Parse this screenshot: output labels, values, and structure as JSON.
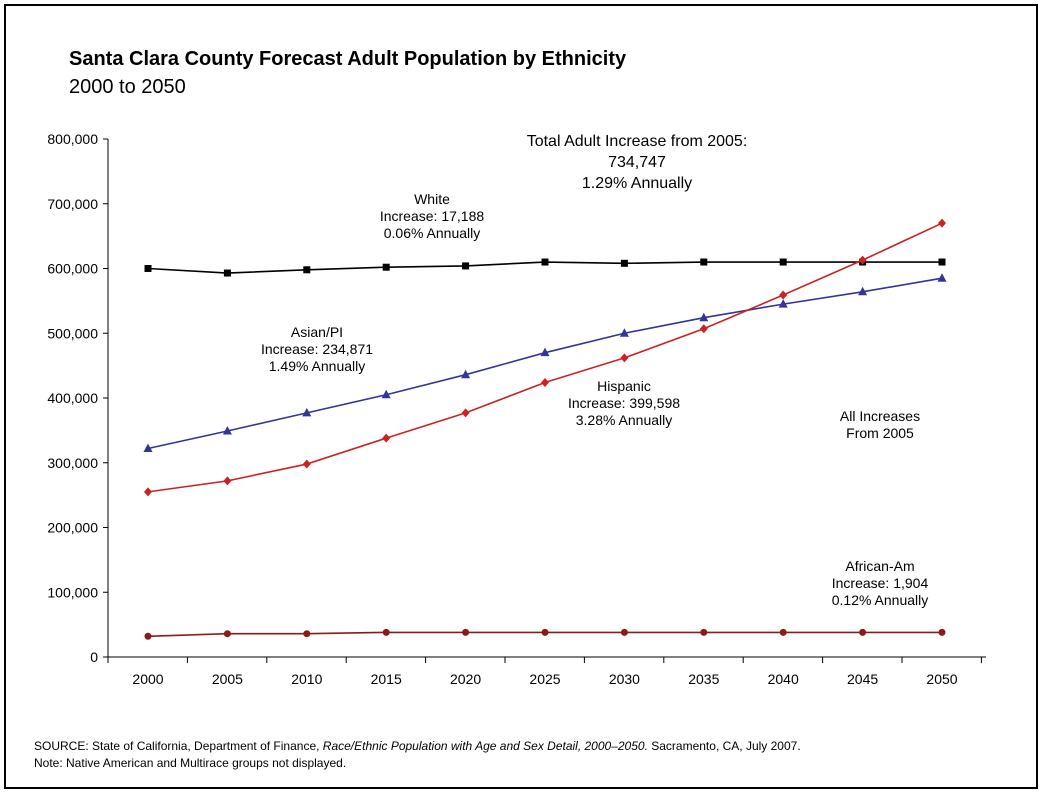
{
  "chart_data": {
    "type": "line",
    "title": "Santa Clara County Forecast Adult Population by Ethnicity",
    "subtitle": "2000 to 2050",
    "x": [
      2000,
      2005,
      2010,
      2015,
      2020,
      2025,
      2030,
      2035,
      2040,
      2045,
      2050
    ],
    "ylim": [
      0,
      800000
    ],
    "yticks": [
      "0",
      "100,000",
      "200,000",
      "300,000",
      "400,000",
      "500,000",
      "600,000",
      "700,000",
      "800,000"
    ],
    "xticks": [
      "2000",
      "2005",
      "2010",
      "2015",
      "2020",
      "2025",
      "2030",
      "2035",
      "2040",
      "2045",
      "2050"
    ],
    "grid": false,
    "series": [
      {
        "key": "white",
        "marker": "square",
        "color": "#000000",
        "values": [
          600000,
          593000,
          598000,
          602000,
          604000,
          610000,
          608000,
          610000,
          610000,
          610000,
          610000
        ]
      },
      {
        "key": "asian",
        "marker": "triangle",
        "color": "#333399",
        "values": [
          322000,
          349000,
          377000,
          405000,
          436000,
          470000,
          500000,
          524000,
          545000,
          564000,
          585000
        ]
      },
      {
        "key": "hispanic",
        "marker": "diamond",
        "color": "#cc2222",
        "values": [
          255000,
          272000,
          298000,
          338000,
          377000,
          424000,
          462000,
          507000,
          559000,
          613000,
          670000
        ]
      },
      {
        "key": "african",
        "marker": "circle",
        "color": "#8b1a1a",
        "values": [
          32000,
          36000,
          36000,
          38000,
          38000,
          38000,
          38000,
          38000,
          38000,
          38000,
          38000
        ]
      }
    ],
    "annotations": {
      "total": [
        "Total Adult Increase from 2005:",
        "734,747",
        "1.29% Annually"
      ],
      "white": [
        "White",
        "Increase: 17,188",
        "0.06% Annually"
      ],
      "asian": [
        "Asian/PI",
        "Increase: 234,871",
        "1.49% Annually"
      ],
      "hispanic": [
        "Hispanic",
        "Increase: 399,598",
        "3.28% Annually"
      ],
      "all": [
        "All Increases",
        "From 2005"
      ],
      "african": [
        "African-Am",
        "Increase: 1,904",
        "0.12% Annually"
      ]
    }
  },
  "source": {
    "prefix": "SOURCE: State of California, Department of Finance, ",
    "italic": "Race/Ethnic Population with Age and Sex Detail, 2000–2050.",
    "suffix": " Sacramento, CA, July 2007.",
    "note": "Note: Native American and Multirace groups not displayed."
  }
}
